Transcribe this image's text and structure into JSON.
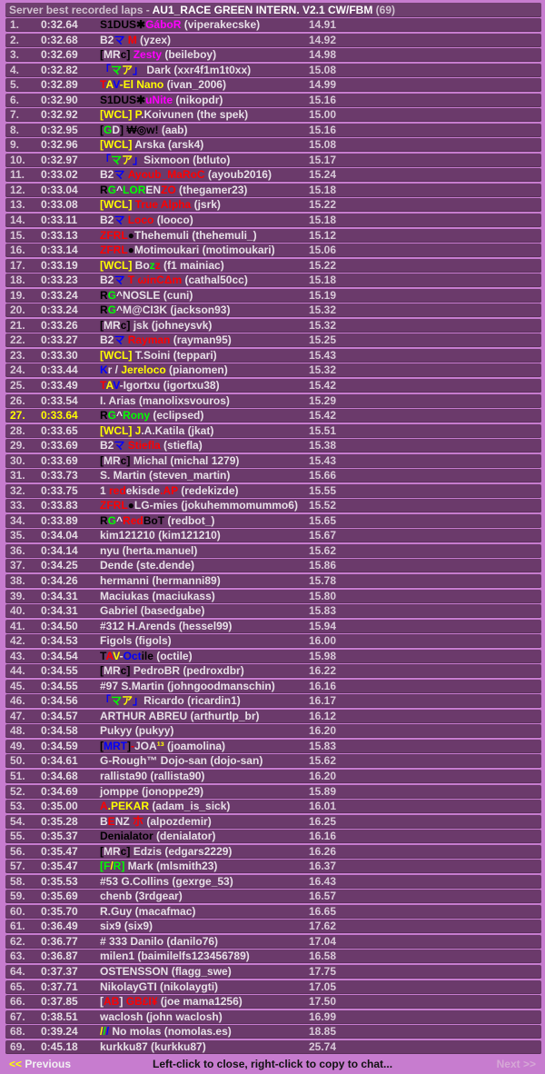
{
  "header": {
    "prefix": "Server best recorded laps - ",
    "track": "AU1_RACE GREEN INTERN. V2.1 CW/FBM",
    "count": " (69)"
  },
  "footer": {
    "prev_arrows": "<<",
    "prev_label": " Previous",
    "hint": "Left-click to close, right-click to copy to chat...",
    "next_label": "Next >>"
  },
  "colors": {
    "w": "#e8e0e8",
    "k": "#000000",
    "m": "#ff00ff",
    "r": "#ff0000",
    "b": "#0000ff",
    "g": "#00ff00",
    "y": "#ffff00"
  },
  "highlighted_row": 27,
  "rows": [
    {
      "pos": "1.",
      "time": "0:32.64",
      "name": [
        [
          "S1DUS✱",
          "k"
        ],
        [
          "GáboR",
          "m"
        ]
      ],
      "login": "viperakecske",
      "speed": "14.91"
    },
    {
      "pos": "2.",
      "time": "0:32.68",
      "name": [
        [
          "B2",
          "w"
        ],
        [
          "マ",
          "b"
        ],
        [
          " ",
          "w"
        ],
        [
          "M",
          "r"
        ]
      ],
      "login": "yzex",
      "speed": "14.92"
    },
    {
      "pos": "3.",
      "time": "0:32.69",
      "name": [
        [
          "[",
          "k"
        ],
        [
          "MR",
          "w"
        ],
        [
          "c",
          "k"
        ],
        [
          "]",
          "k"
        ],
        [
          " ",
          "w"
        ],
        [
          "Zesty",
          "m"
        ]
      ],
      "login": "beileboy",
      "speed": "14.98"
    },
    {
      "pos": "4.",
      "time": "0:32.82",
      "name": [
        [
          "「",
          "b"
        ],
        [
          "マ",
          "g"
        ],
        [
          "ア",
          "y"
        ],
        [
          "」",
          "b"
        ],
        [
          " Dark",
          "w"
        ]
      ],
      "login": "xxr4f1m1t0xx",
      "speed": "15.08"
    },
    {
      "pos": "5.",
      "time": "0:32.89",
      "name": [
        [
          "T",
          "r"
        ],
        [
          "A",
          "y"
        ],
        [
          "V",
          "b"
        ],
        [
          "-El Nano",
          "y"
        ]
      ],
      "login": "ivan_2006",
      "speed": "14.99"
    },
    {
      "pos": "6.",
      "time": "0:32.90",
      "name": [
        [
          "S1DUS✱",
          "k"
        ],
        [
          "uNite",
          "m"
        ]
      ],
      "login": "nikopdr",
      "speed": "15.16"
    },
    {
      "pos": "7.",
      "time": "0:32.92",
      "name": [
        [
          "[WCL] P",
          "y"
        ],
        [
          ".Koivunen",
          "w"
        ]
      ],
      "login": "the spek",
      "speed": "15.00"
    },
    {
      "pos": "8.",
      "time": "0:32.95",
      "name": [
        [
          "[",
          "k"
        ],
        [
          "G",
          "g"
        ],
        [
          "D",
          "w"
        ],
        [
          "]",
          "k"
        ],
        [
          " ₩◎w!",
          "k"
        ]
      ],
      "login": "aab",
      "speed": "15.16"
    },
    {
      "pos": "9.",
      "time": "0:32.96",
      "name": [
        [
          "[WCL]",
          "y"
        ],
        [
          " Arska",
          "w"
        ]
      ],
      "login": "arsk4",
      "speed": "15.08"
    },
    {
      "pos": "10.",
      "time": "0:32.97",
      "name": [
        [
          "「",
          "b"
        ],
        [
          "マ",
          "g"
        ],
        [
          "ア",
          "y"
        ],
        [
          "」",
          "b"
        ],
        [
          "Sixmoon",
          "w"
        ]
      ],
      "login": "btluto",
      "speed": "15.17"
    },
    {
      "pos": "11.",
      "time": "0:33.02",
      "name": [
        [
          "B2",
          "w"
        ],
        [
          "マ",
          "b"
        ],
        [
          " Ayoub_MaRoC",
          "r"
        ]
      ],
      "login": "ayoub2016",
      "speed": "15.24"
    },
    {
      "pos": "12.",
      "time": "0:33.04",
      "name": [
        [
          "R",
          "k"
        ],
        [
          "G",
          "g"
        ],
        [
          "^",
          "w"
        ],
        [
          "LOR",
          "g"
        ],
        [
          "EN",
          "w"
        ],
        [
          "ZO",
          "r"
        ]
      ],
      "login": "thegamer23",
      "speed": "15.18"
    },
    {
      "pos": "13.",
      "time": "0:33.08",
      "name": [
        [
          "[WCL]",
          "y"
        ],
        [
          " True Alpha",
          "r"
        ]
      ],
      "login": "jsrk",
      "speed": "15.22"
    },
    {
      "pos": "14.",
      "time": "0:33.11",
      "name": [
        [
          "B2",
          "w"
        ],
        [
          "マ",
          "b"
        ],
        [
          " Loco",
          "r"
        ]
      ],
      "login": "looco",
      "speed": "15.18"
    },
    {
      "pos": "15.",
      "time": "0:33.13",
      "name": [
        [
          "ZFRL",
          "r"
        ],
        [
          "●",
          "k"
        ],
        [
          "Thehemuli",
          "w"
        ]
      ],
      "login": "thehemuli_",
      "speed": "15.12"
    },
    {
      "pos": "16.",
      "time": "0:33.14",
      "name": [
        [
          "ZFRL",
          "r"
        ],
        [
          "●",
          "k"
        ],
        [
          "Motimoukari",
          "w"
        ]
      ],
      "login": "motimoukari",
      "speed": "15.06"
    },
    {
      "pos": "17.",
      "time": "0:33.19",
      "name": [
        [
          "[WCL]",
          "y"
        ],
        [
          " Bo",
          "w"
        ],
        [
          "z",
          "g"
        ],
        [
          "z",
          "r"
        ]
      ],
      "login": "f1 mainiac",
      "speed": "15.22"
    },
    {
      "pos": "18.",
      "time": "0:33.23",
      "name": [
        [
          "B2",
          "w"
        ],
        [
          "マ",
          "b"
        ],
        [
          " T ωinCΔm",
          "r"
        ]
      ],
      "login": "cathal50cc",
      "speed": "15.18"
    },
    {
      "pos": "19.",
      "time": "0:33.24",
      "name": [
        [
          "R",
          "k"
        ],
        [
          "G",
          "g"
        ],
        [
          "^",
          "w"
        ],
        [
          "NOSLE",
          "w"
        ]
      ],
      "login": "cuni",
      "speed": "15.19"
    },
    {
      "pos": "20.",
      "time": "0:33.24",
      "name": [
        [
          "R",
          "k"
        ],
        [
          "G",
          "g"
        ],
        [
          "^",
          "w"
        ],
        [
          "M@CI3K",
          "w"
        ]
      ],
      "login": "jackson93",
      "speed": "15.32"
    },
    {
      "pos": "21.",
      "time": "0:33.26",
      "name": [
        [
          "[",
          "k"
        ],
        [
          "MR",
          "w"
        ],
        [
          "c",
          "k"
        ],
        [
          "]",
          "k"
        ],
        [
          " jsk",
          "w"
        ]
      ],
      "login": "johneysvk",
      "speed": "15.32"
    },
    {
      "pos": "22.",
      "time": "0:33.27",
      "name": [
        [
          "B2",
          "w"
        ],
        [
          "マ",
          "b"
        ],
        [
          " Rayman",
          "r"
        ]
      ],
      "login": "rayman95",
      "speed": "15.25"
    },
    {
      "pos": "23.",
      "time": "0:33.30",
      "name": [
        [
          "[WCL]",
          "y"
        ],
        [
          " T.Soini",
          "w"
        ]
      ],
      "login": "teppari",
      "speed": "15.43"
    },
    {
      "pos": "24.",
      "time": "0:33.44",
      "name": [
        [
          "K",
          "b"
        ],
        [
          "r / ",
          "w"
        ],
        [
          "Jereloco",
          "y"
        ]
      ],
      "login": "pianomen",
      "speed": "15.32"
    },
    {
      "pos": "25.",
      "time": "0:33.49",
      "name": [
        [
          "T",
          "r"
        ],
        [
          "A",
          "y"
        ],
        [
          "V",
          "b"
        ],
        [
          "-Igortxu",
          "w"
        ]
      ],
      "login": "igortxu38",
      "speed": "15.42"
    },
    {
      "pos": "26.",
      "time": "0:33.54",
      "name": [
        [
          "I. Arias",
          "w"
        ]
      ],
      "login": "manolixsvouros",
      "speed": "15.29"
    },
    {
      "pos": "27.",
      "time": "0:33.64",
      "name": [
        [
          "R",
          "k"
        ],
        [
          "G",
          "g"
        ],
        [
          "^",
          "w"
        ],
        [
          "Rony",
          "g"
        ]
      ],
      "login": "eclipsed",
      "speed": "15.42"
    },
    {
      "pos": "28.",
      "time": "0:33.65",
      "name": [
        [
          "[WCL] J",
          "y"
        ],
        [
          ".A.Katila",
          "w"
        ]
      ],
      "login": "jkat",
      "speed": "15.51"
    },
    {
      "pos": "29.",
      "time": "0:33.69",
      "name": [
        [
          "B2",
          "w"
        ],
        [
          "マ",
          "b"
        ],
        [
          " Stiefla",
          "r"
        ]
      ],
      "login": "stiefla",
      "speed": "15.38"
    },
    {
      "pos": "30.",
      "time": "0:33.69",
      "name": [
        [
          "[",
          "k"
        ],
        [
          "MR",
          "w"
        ],
        [
          "c",
          "k"
        ],
        [
          "]",
          "k"
        ],
        [
          " Michal",
          "w"
        ]
      ],
      "login": "michal 1279",
      "speed": "15.43"
    },
    {
      "pos": "31.",
      "time": "0:33.73",
      "name": [
        [
          "S. Martin",
          "w"
        ]
      ],
      "login": "steven_martin",
      "speed": "15.66"
    },
    {
      "pos": "32.",
      "time": "0:33.75",
      "name": [
        [
          "1 ",
          "w"
        ],
        [
          "red",
          "r"
        ],
        [
          "ekisde",
          "w"
        ],
        [
          ".AP",
          "r"
        ]
      ],
      "login": "redekizde",
      "speed": "15.55"
    },
    {
      "pos": "33.",
      "time": "0:33.83",
      "name": [
        [
          "ZFRL",
          "r"
        ],
        [
          "●",
          "k"
        ],
        [
          "LG-mies",
          "w"
        ]
      ],
      "login": "jokuhemmomummo6",
      "speed": "15.52"
    },
    {
      "pos": "34.",
      "time": "0:33.89",
      "name": [
        [
          "R",
          "k"
        ],
        [
          "G",
          "g"
        ],
        [
          "^",
          "w"
        ],
        [
          "Red",
          "r"
        ],
        [
          "BoT",
          "k"
        ]
      ],
      "login": "redbot_",
      "speed": "15.65"
    },
    {
      "pos": "35.",
      "time": "0:34.04",
      "name": [
        [
          "kim121210",
          "w"
        ]
      ],
      "login": "kim121210",
      "speed": "15.67"
    },
    {
      "pos": "36.",
      "time": "0:34.14",
      "name": [
        [
          "nyu",
          "w"
        ]
      ],
      "login": "herta.manuel",
      "speed": "15.62"
    },
    {
      "pos": "37.",
      "time": "0:34.25",
      "name": [
        [
          "Dende",
          "w"
        ]
      ],
      "login": "ste.dende",
      "speed": "15.86"
    },
    {
      "pos": "38.",
      "time": "0:34.26",
      "name": [
        [
          "hermanni",
          "w"
        ]
      ],
      "login": "hermanni89",
      "speed": "15.78"
    },
    {
      "pos": "39.",
      "time": "0:34.31",
      "name": [
        [
          "Maciukas",
          "w"
        ]
      ],
      "login": "maciukass",
      "speed": "15.80"
    },
    {
      "pos": "40.",
      "time": "0:34.31",
      "name": [
        [
          "Gabriel",
          "w"
        ]
      ],
      "login": "basedgabe",
      "speed": "15.83"
    },
    {
      "pos": "41.",
      "time": "0:34.50",
      "name": [
        [
          "#312 H.Arends",
          "w"
        ]
      ],
      "login": "hessel99",
      "speed": "15.94"
    },
    {
      "pos": "42.",
      "time": "0:34.53",
      "name": [
        [
          "Figols",
          "w"
        ]
      ],
      "login": "figols",
      "speed": "16.00"
    },
    {
      "pos": "43.",
      "time": "0:34.54",
      "name": [
        [
          "T",
          "k"
        ],
        [
          "A",
          "r"
        ],
        [
          "V",
          "y"
        ],
        [
          "-",
          "w"
        ],
        [
          "Oct",
          "b"
        ],
        [
          "ile",
          "k"
        ]
      ],
      "login": "octile",
      "speed": "15.98"
    },
    {
      "pos": "44.",
      "time": "0:34.55",
      "name": [
        [
          "[",
          "k"
        ],
        [
          "MR",
          "w"
        ],
        [
          "c",
          "k"
        ],
        [
          "]",
          "k"
        ],
        [
          " PedroBR",
          "w"
        ]
      ],
      "login": "pedroxdbr",
      "speed": "16.22"
    },
    {
      "pos": "45.",
      "time": "0:34.55",
      "name": [
        [
          "#97 S.Martin",
          "w"
        ]
      ],
      "login": "johngoodmanschin",
      "speed": "16.16"
    },
    {
      "pos": "46.",
      "time": "0:34.56",
      "name": [
        [
          "「",
          "b"
        ],
        [
          "マ",
          "g"
        ],
        [
          "ア",
          "y"
        ],
        [
          "」",
          "b"
        ],
        [
          "Ricardo",
          "w"
        ]
      ],
      "login": "ricardin1",
      "speed": "16.17"
    },
    {
      "pos": "47.",
      "time": "0:34.57",
      "name": [
        [
          "ARTHUR ABREU",
          "w"
        ]
      ],
      "login": "arthurtlp_br",
      "speed": "16.12"
    },
    {
      "pos": "48.",
      "time": "0:34.58",
      "name": [
        [
          "Pukyy",
          "w"
        ]
      ],
      "login": "pukyy",
      "speed": "16.20"
    },
    {
      "pos": "49.",
      "time": "0:34.59",
      "name": [
        [
          "[",
          "k"
        ],
        [
          "MRT",
          "b"
        ],
        [
          "]",
          "k"
        ],
        [
          "-",
          "r"
        ],
        [
          "JOA",
          "w"
        ],
        [
          "¹³",
          "y"
        ]
      ],
      "login": "joamolina",
      "speed": "15.83"
    },
    {
      "pos": "50.",
      "time": "0:34.61",
      "name": [
        [
          "G-Rough™ Dojo-san",
          "w"
        ]
      ],
      "login": "dojo-san",
      "speed": "15.62"
    },
    {
      "pos": "51.",
      "time": "0:34.68",
      "name": [
        [
          "rallista90",
          "w"
        ]
      ],
      "login": "rallista90",
      "speed": "16.20"
    },
    {
      "pos": "52.",
      "time": "0:34.69",
      "name": [
        [
          "jomppe",
          "w"
        ]
      ],
      "login": "jonoppe29",
      "speed": "15.89"
    },
    {
      "pos": "53.",
      "time": "0:35.00",
      "name": [
        [
          "A",
          "r"
        ],
        [
          ".PEKAR",
          "y"
        ]
      ],
      "login": "adam_is_sick",
      "speed": "16.01"
    },
    {
      "pos": "54.",
      "time": "0:35.28",
      "name": [
        [
          "B",
          "w"
        ],
        [
          "E",
          "r"
        ],
        [
          "NZ ",
          "w"
        ],
        [
          "朩",
          "r"
        ]
      ],
      "login": "alpozdemir",
      "speed": "16.25"
    },
    {
      "pos": "55.",
      "time": "0:35.37",
      "name": [
        [
          "Denialator",
          "k"
        ]
      ],
      "login": "denialator",
      "speed": "16.16"
    },
    {
      "pos": "56.",
      "time": "0:35.47",
      "name": [
        [
          "[",
          "k"
        ],
        [
          "MR",
          "w"
        ],
        [
          "c",
          "k"
        ],
        [
          "]",
          "k"
        ],
        [
          " Edzis",
          "w"
        ]
      ],
      "login": "edgars2229",
      "speed": "16.26"
    },
    {
      "pos": "57.",
      "time": "0:35.47",
      "name": [
        [
          "[F",
          "g"
        ],
        [
          "/",
          "y"
        ],
        [
          "R]",
          "g"
        ],
        [
          " Mark",
          "w"
        ]
      ],
      "login": "mlsmith23",
      "speed": "16.37"
    },
    {
      "pos": "58.",
      "time": "0:35.53",
      "name": [
        [
          "#53 G.Collins",
          "w"
        ]
      ],
      "login": "gexrge_53",
      "speed": "16.43"
    },
    {
      "pos": "59.",
      "time": "0:35.69",
      "name": [
        [
          "chenb",
          "w"
        ]
      ],
      "login": "3rdgear",
      "speed": "16.57"
    },
    {
      "pos": "60.",
      "time": "0:35.70",
      "name": [
        [
          "R.Guy",
          "w"
        ]
      ],
      "login": "macafmac",
      "speed": "16.65"
    },
    {
      "pos": "61.",
      "time": "0:36.49",
      "name": [
        [
          "six9",
          "w"
        ]
      ],
      "login": "six9",
      "speed": "17.62"
    },
    {
      "pos": "62.",
      "time": "0:36.77",
      "name": [
        [
          "# 333 Danilo",
          "w"
        ]
      ],
      "login": "danilo76",
      "speed": "17.04"
    },
    {
      "pos": "63.",
      "time": "0:36.87",
      "name": [
        [
          "milen1",
          "w"
        ]
      ],
      "login": "baimilelfs123456789",
      "speed": "16.58"
    },
    {
      "pos": "64.",
      "time": "0:37.37",
      "name": [
        [
          "OSTENSSON",
          "w"
        ]
      ],
      "login": "flagg_swe",
      "speed": "17.75"
    },
    {
      "pos": "65.",
      "time": "0:37.71",
      "name": [
        [
          "NikolayGTI",
          "w"
        ]
      ],
      "login": "nikolaygti",
      "speed": "17.05"
    },
    {
      "pos": "66.",
      "time": "0:37.85",
      "name": [
        [
          "[",
          "w"
        ],
        [
          "AB",
          "r"
        ],
        [
          "] ",
          "w"
        ],
        [
          "GB£I¥",
          "r"
        ]
      ],
      "login": "joe mama1256",
      "speed": "17.50"
    },
    {
      "pos": "67.",
      "time": "0:38.51",
      "name": [
        [
          "waclosh",
          "w"
        ]
      ],
      "login": "john waclosh",
      "speed": "16.99"
    },
    {
      "pos": "68.",
      "time": "0:39.24",
      "name": [
        [
          "/",
          "y"
        ],
        [
          "/",
          "g"
        ],
        [
          "/",
          "b"
        ],
        [
          " No molas",
          "w"
        ]
      ],
      "login": "nomolas.es",
      "speed": "18.85"
    },
    {
      "pos": "69.",
      "time": "0:45.18",
      "name": [
        [
          "kurkku87",
          "w"
        ]
      ],
      "login": "kurkku87",
      "speed": "25.74"
    }
  ]
}
